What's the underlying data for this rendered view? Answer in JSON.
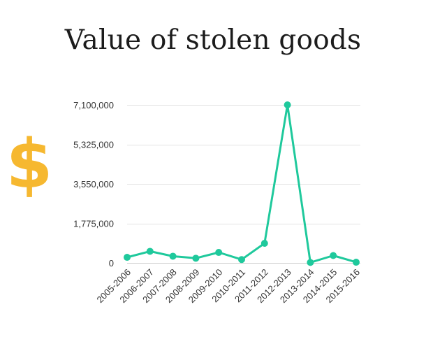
{
  "colors": {
    "series": "#1fc99c",
    "dollar": "#f6b830",
    "title": "#1c1c1c"
  },
  "icons": {
    "dollar": "dollar-sign-icon"
  },
  "chart_data": {
    "type": "line",
    "title": "Value of stolen goods",
    "xlabel": "",
    "ylabel": "",
    "categories": [
      "2005-2006",
      "2006-2007",
      "2007-2008",
      "2008-2009",
      "2009-2010",
      "2010-2011",
      "2011-2012",
      "2012-2013",
      "2013-2014",
      "2014-2015",
      "2015-2016"
    ],
    "series": [
      {
        "values": [
          250000,
          520000,
          300000,
          210000,
          470000,
          150000,
          880000,
          7100000,
          20000,
          330000,
          30000
        ]
      }
    ],
    "ylim": [
      0,
      7100000
    ],
    "yticks": [
      "0",
      "1,775,000",
      "3,550,000",
      "5,325,000",
      "7,100,000"
    ],
    "ytick_values": [
      0,
      1775000,
      3550000,
      5325000,
      7100000
    ],
    "grid": true,
    "legend": "none"
  }
}
